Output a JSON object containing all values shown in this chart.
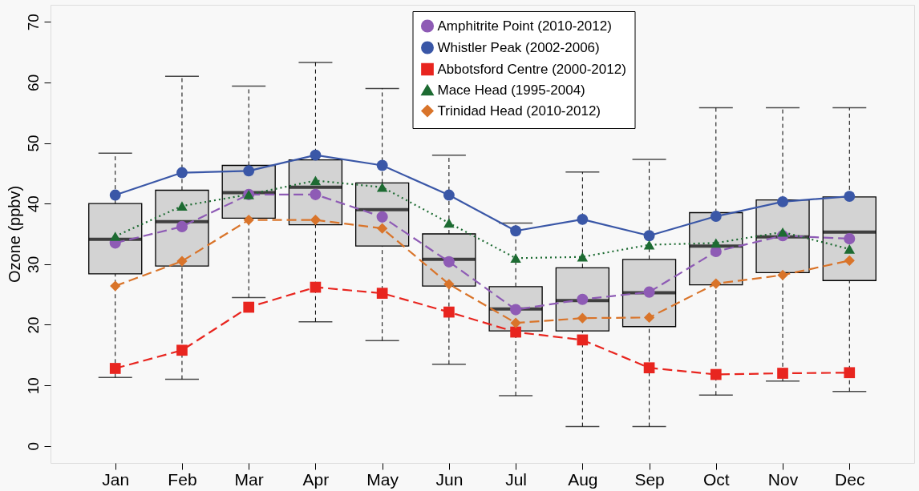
{
  "chart_data": {
    "type": "box",
    "ylabel": "Ozone (ppbv)",
    "categories": [
      "Jan",
      "Feb",
      "Mar",
      "Apr",
      "May",
      "Jun",
      "Jul",
      "Aug",
      "Sep",
      "Oct",
      "Nov",
      "Dec"
    ],
    "boxes": [
      {
        "low": 11.3,
        "q1": 28.4,
        "median": 34.1,
        "q3": 40,
        "high": 48.3
      },
      {
        "low": 11,
        "q1": 29.7,
        "median": 37,
        "q3": 42.2,
        "high": 61
      },
      {
        "low": 24.5,
        "q1": 37.6,
        "median": 41.8,
        "q3": 46.3,
        "high": 59.4
      },
      {
        "low": 20.5,
        "q1": 36.5,
        "median": 42.7,
        "q3": 47.2,
        "high": 63.3
      },
      {
        "low": 17.4,
        "q1": 33,
        "median": 39,
        "q3": 43.4,
        "high": 59
      },
      {
        "low": 13.5,
        "q1": 26.4,
        "median": 30.8,
        "q3": 35,
        "high": 48
      },
      {
        "low": 8.3,
        "q1": 19,
        "median": 22.6,
        "q3": 26.3,
        "high": 36.8
      },
      {
        "low": 3.2,
        "q1": 19,
        "median": 24,
        "q3": 29.4,
        "high": 45.2
      },
      {
        "low": 3.2,
        "q1": 19.7,
        "median": 25.3,
        "q3": 30.8,
        "high": 47.3
      },
      {
        "low": 8.4,
        "q1": 26.6,
        "median": 33,
        "q3": 38.5,
        "high": 55.8
      },
      {
        "low": 10.7,
        "q1": 28.6,
        "median": 34.5,
        "q3": 40.6,
        "high": 55.8
      },
      {
        "low": 9,
        "q1": 27.3,
        "median": 35.3,
        "q3": 41.1,
        "high": 55.8
      }
    ],
    "series": [
      {
        "name": "Amphitrite Point (2010-2012)",
        "type": "line",
        "color": "#8e5bb5",
        "marker": "circle",
        "line_style": "dashed",
        "values": [
          33.5,
          36.2,
          41.5,
          41.5,
          37.8,
          30.4,
          22.5,
          24.2,
          25.4,
          32.1,
          34.7,
          34.2
        ]
      },
      {
        "name": "Whistler Peak (2002-2006)",
        "type": "line",
        "color": "#3a57a7",
        "marker": "circle",
        "line_style": "solid",
        "values": [
          41.4,
          45.1,
          45.4,
          48,
          46.3,
          41.4,
          35.5,
          37.4,
          34.7,
          37.9,
          40.3,
          41.2
        ]
      },
      {
        "name": "Abbotsford Centre (2000-2012)",
        "type": "line",
        "color": "#e8251f",
        "marker": "square",
        "line_style": "dashed",
        "values": [
          12.8,
          15.8,
          22.9,
          26.2,
          25.2,
          22.1,
          18.8,
          17.5,
          12.9,
          11.8,
          12,
          12.1
        ]
      },
      {
        "name": "Mace Head (1995-2004)",
        "type": "line",
        "color": "#1d6b32",
        "marker": "triangle",
        "line_style": "dotted",
        "values": [
          34.6,
          39.6,
          41.5,
          43.8,
          42.7,
          36.8,
          31,
          31.2,
          33.2,
          33.5,
          35.3,
          32.5
        ]
      },
      {
        "name": "Trinidad Head (2010-2012)",
        "type": "line",
        "color": "#d9742a",
        "marker": "diamond",
        "line_style": "dashed",
        "values": [
          26.4,
          30.5,
          37.3,
          37.3,
          35.9,
          26.7,
          20.3,
          21.1,
          21.2,
          26.8,
          28.2,
          30.6
        ]
      }
    ],
    "ylim": [
      -2.8,
      72.8
    ],
    "yticks": [
      0,
      10,
      20,
      30,
      40,
      50,
      60,
      70
    ],
    "grid": false,
    "legend": "top"
  }
}
